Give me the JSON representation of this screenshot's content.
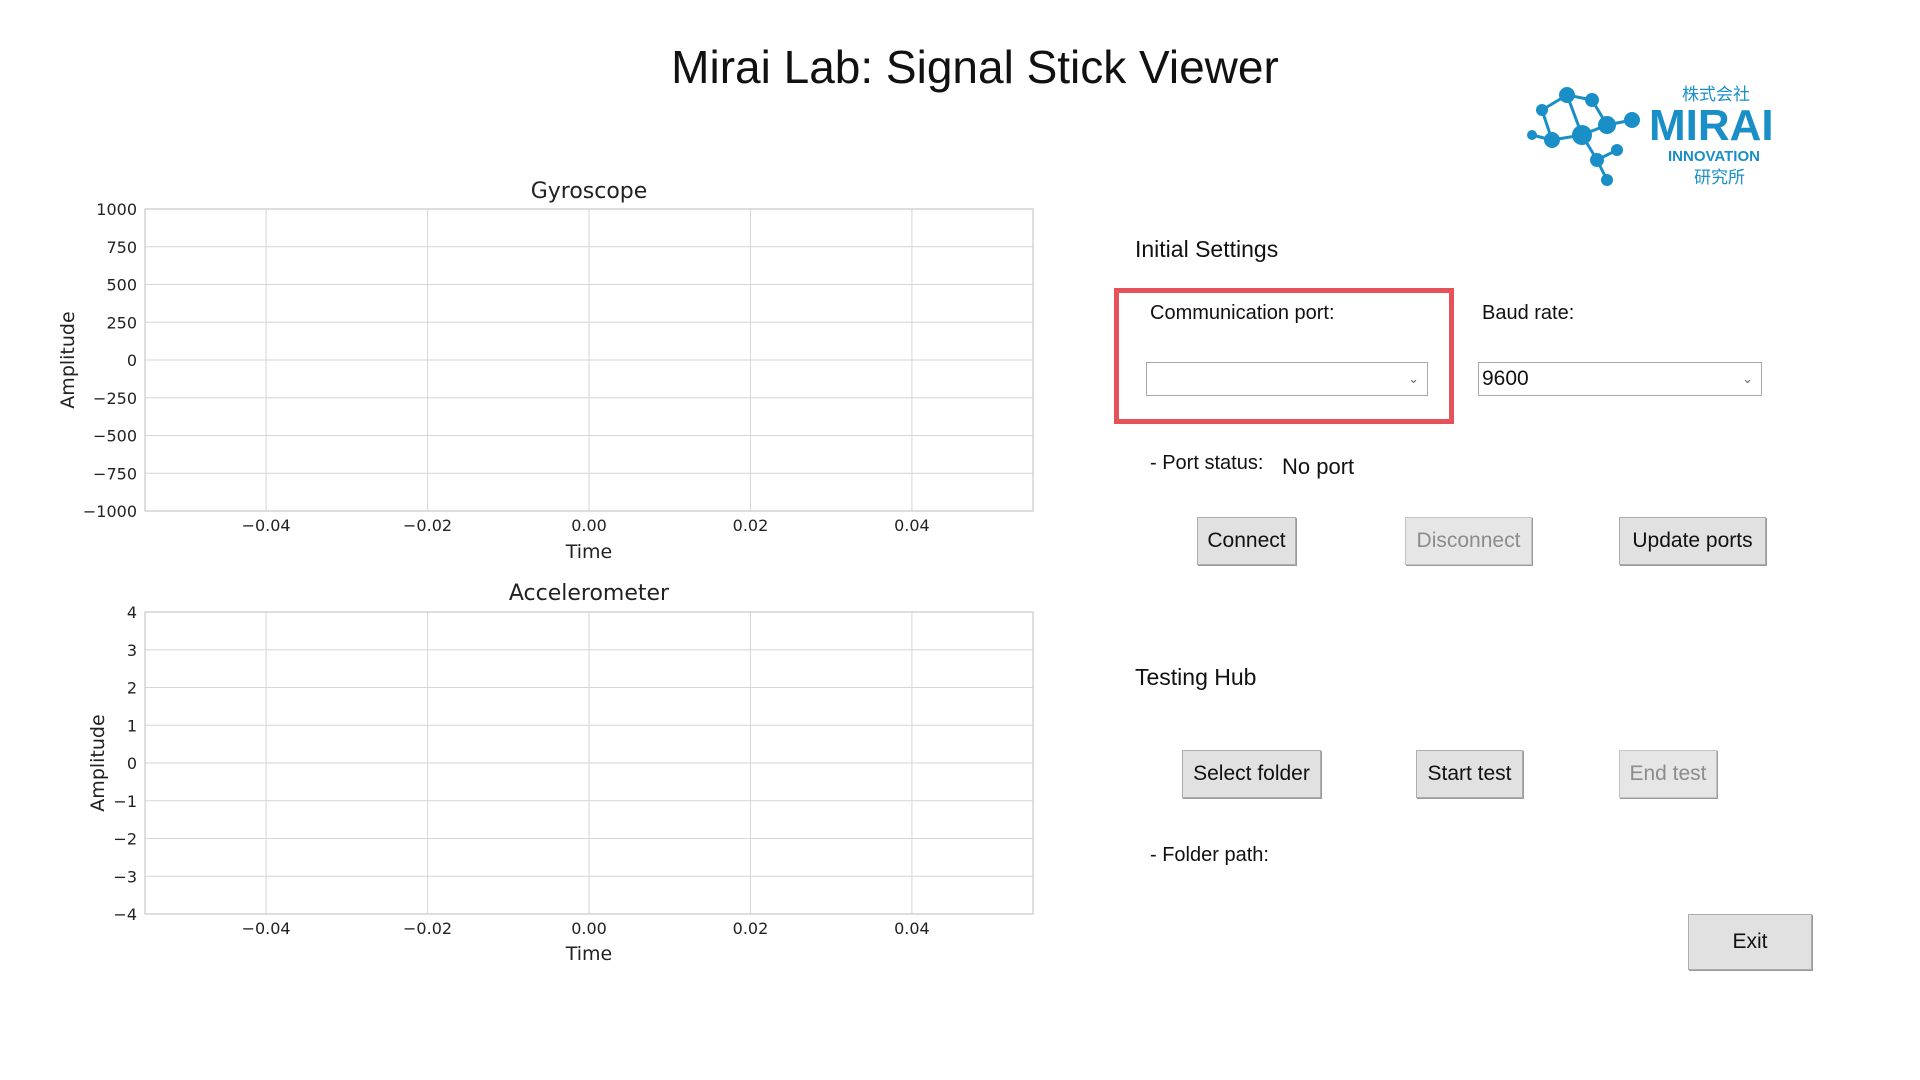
{
  "app": {
    "title": "Mirai Lab: Signal Stick Viewer"
  },
  "logo": {
    "kanji_top": "株式会社",
    "word": "MIRAI",
    "sub": "INNOVATION",
    "kanji_bottom": "研究所",
    "color": "#1a8fc7"
  },
  "initial_settings": {
    "heading": "Initial Settings",
    "comm_port_label": "Communication port:",
    "comm_port_value": "",
    "baud_label": "Baud rate:",
    "baud_value": "9600",
    "port_status_label": "- Port status:",
    "port_status_value": "No port",
    "connect": "Connect",
    "disconnect": "Disconnect",
    "update_ports": "Update ports",
    "highlight_color": "#e5525a"
  },
  "testing_hub": {
    "heading": "Testing Hub",
    "select_folder": "Select folder",
    "start_test": "Start test",
    "end_test": "End test",
    "folder_path_label": "- Folder path:",
    "folder_path_value": ""
  },
  "exit": "Exit",
  "chart_data": [
    {
      "type": "line",
      "title": "Gyroscope",
      "xlabel": "Time",
      "ylabel": "Amplitude",
      "xlim": [
        -0.055,
        0.055
      ],
      "ylim": [
        -1000,
        1000
      ],
      "xticks": [
        "−0.04",
        "−0.02",
        "0.00",
        "0.02",
        "0.04"
      ],
      "xtick_values": [
        -0.04,
        -0.02,
        0.0,
        0.02,
        0.04
      ],
      "yticks": [
        "1000",
        "750",
        "500",
        "250",
        "0",
        "−250",
        "−500",
        "−750",
        "−1000"
      ],
      "ytick_values": [
        1000,
        750,
        500,
        250,
        0,
        -250,
        -500,
        -750,
        -1000
      ],
      "grid": true,
      "series": []
    },
    {
      "type": "line",
      "title": "Accelerometer",
      "xlabel": "Time",
      "ylabel": "Amplitude",
      "xlim": [
        -0.055,
        0.055
      ],
      "ylim": [
        -4,
        4
      ],
      "xticks": [
        "−0.04",
        "−0.02",
        "0.00",
        "0.02",
        "0.04"
      ],
      "xtick_values": [
        -0.04,
        -0.02,
        0.0,
        0.02,
        0.04
      ],
      "yticks": [
        "4",
        "3",
        "2",
        "1",
        "0",
        "−1",
        "−2",
        "−3",
        "−4"
      ],
      "ytick_values": [
        4,
        3,
        2,
        1,
        0,
        -1,
        -2,
        -3,
        -4
      ],
      "grid": true,
      "series": []
    }
  ]
}
